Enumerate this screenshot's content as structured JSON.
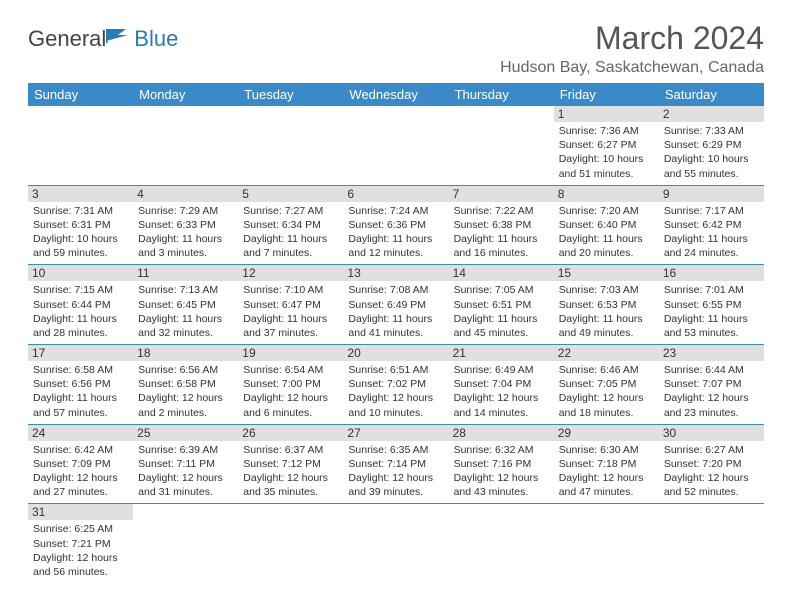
{
  "logo": {
    "general": "General",
    "blue": "Blue"
  },
  "title": "March 2024",
  "location": "Hudson Bay, Saskatchewan, Canada",
  "colors": {
    "header_bg": "#3a8ac8",
    "header_fg": "#ffffff",
    "daynum_bg": "#e0e0e0",
    "border": "#3a8ac8",
    "logo_blue": "#2a7ab8"
  },
  "weekdays": [
    "Sunday",
    "Monday",
    "Tuesday",
    "Wednesday",
    "Thursday",
    "Friday",
    "Saturday"
  ],
  "weeks": [
    [
      null,
      null,
      null,
      null,
      null,
      {
        "n": "1",
        "sr": "7:36 AM",
        "ss": "6:27 PM",
        "dl": "10 hours and 51 minutes."
      },
      {
        "n": "2",
        "sr": "7:33 AM",
        "ss": "6:29 PM",
        "dl": "10 hours and 55 minutes."
      }
    ],
    [
      {
        "n": "3",
        "sr": "7:31 AM",
        "ss": "6:31 PM",
        "dl": "10 hours and 59 minutes."
      },
      {
        "n": "4",
        "sr": "7:29 AM",
        "ss": "6:33 PM",
        "dl": "11 hours and 3 minutes."
      },
      {
        "n": "5",
        "sr": "7:27 AM",
        "ss": "6:34 PM",
        "dl": "11 hours and 7 minutes."
      },
      {
        "n": "6",
        "sr": "7:24 AM",
        "ss": "6:36 PM",
        "dl": "11 hours and 12 minutes."
      },
      {
        "n": "7",
        "sr": "7:22 AM",
        "ss": "6:38 PM",
        "dl": "11 hours and 16 minutes."
      },
      {
        "n": "8",
        "sr": "7:20 AM",
        "ss": "6:40 PM",
        "dl": "11 hours and 20 minutes."
      },
      {
        "n": "9",
        "sr": "7:17 AM",
        "ss": "6:42 PM",
        "dl": "11 hours and 24 minutes."
      }
    ],
    [
      {
        "n": "10",
        "sr": "7:15 AM",
        "ss": "6:44 PM",
        "dl": "11 hours and 28 minutes."
      },
      {
        "n": "11",
        "sr": "7:13 AM",
        "ss": "6:45 PM",
        "dl": "11 hours and 32 minutes."
      },
      {
        "n": "12",
        "sr": "7:10 AM",
        "ss": "6:47 PM",
        "dl": "11 hours and 37 minutes."
      },
      {
        "n": "13",
        "sr": "7:08 AM",
        "ss": "6:49 PM",
        "dl": "11 hours and 41 minutes."
      },
      {
        "n": "14",
        "sr": "7:05 AM",
        "ss": "6:51 PM",
        "dl": "11 hours and 45 minutes."
      },
      {
        "n": "15",
        "sr": "7:03 AM",
        "ss": "6:53 PM",
        "dl": "11 hours and 49 minutes."
      },
      {
        "n": "16",
        "sr": "7:01 AM",
        "ss": "6:55 PM",
        "dl": "11 hours and 53 minutes."
      }
    ],
    [
      {
        "n": "17",
        "sr": "6:58 AM",
        "ss": "6:56 PM",
        "dl": "11 hours and 57 minutes."
      },
      {
        "n": "18",
        "sr": "6:56 AM",
        "ss": "6:58 PM",
        "dl": "12 hours and 2 minutes."
      },
      {
        "n": "19",
        "sr": "6:54 AM",
        "ss": "7:00 PM",
        "dl": "12 hours and 6 minutes."
      },
      {
        "n": "20",
        "sr": "6:51 AM",
        "ss": "7:02 PM",
        "dl": "12 hours and 10 minutes."
      },
      {
        "n": "21",
        "sr": "6:49 AM",
        "ss": "7:04 PM",
        "dl": "12 hours and 14 minutes."
      },
      {
        "n": "22",
        "sr": "6:46 AM",
        "ss": "7:05 PM",
        "dl": "12 hours and 18 minutes."
      },
      {
        "n": "23",
        "sr": "6:44 AM",
        "ss": "7:07 PM",
        "dl": "12 hours and 23 minutes."
      }
    ],
    [
      {
        "n": "24",
        "sr": "6:42 AM",
        "ss": "7:09 PM",
        "dl": "12 hours and 27 minutes."
      },
      {
        "n": "25",
        "sr": "6:39 AM",
        "ss": "7:11 PM",
        "dl": "12 hours and 31 minutes."
      },
      {
        "n": "26",
        "sr": "6:37 AM",
        "ss": "7:12 PM",
        "dl": "12 hours and 35 minutes."
      },
      {
        "n": "27",
        "sr": "6:35 AM",
        "ss": "7:14 PM",
        "dl": "12 hours and 39 minutes."
      },
      {
        "n": "28",
        "sr": "6:32 AM",
        "ss": "7:16 PM",
        "dl": "12 hours and 43 minutes."
      },
      {
        "n": "29",
        "sr": "6:30 AM",
        "ss": "7:18 PM",
        "dl": "12 hours and 47 minutes."
      },
      {
        "n": "30",
        "sr": "6:27 AM",
        "ss": "7:20 PM",
        "dl": "12 hours and 52 minutes."
      }
    ],
    [
      {
        "n": "31",
        "sr": "6:25 AM",
        "ss": "7:21 PM",
        "dl": "12 hours and 56 minutes."
      },
      null,
      null,
      null,
      null,
      null,
      null
    ]
  ],
  "labels": {
    "sunrise": "Sunrise: ",
    "sunset": "Sunset: ",
    "daylight": "Daylight: "
  }
}
